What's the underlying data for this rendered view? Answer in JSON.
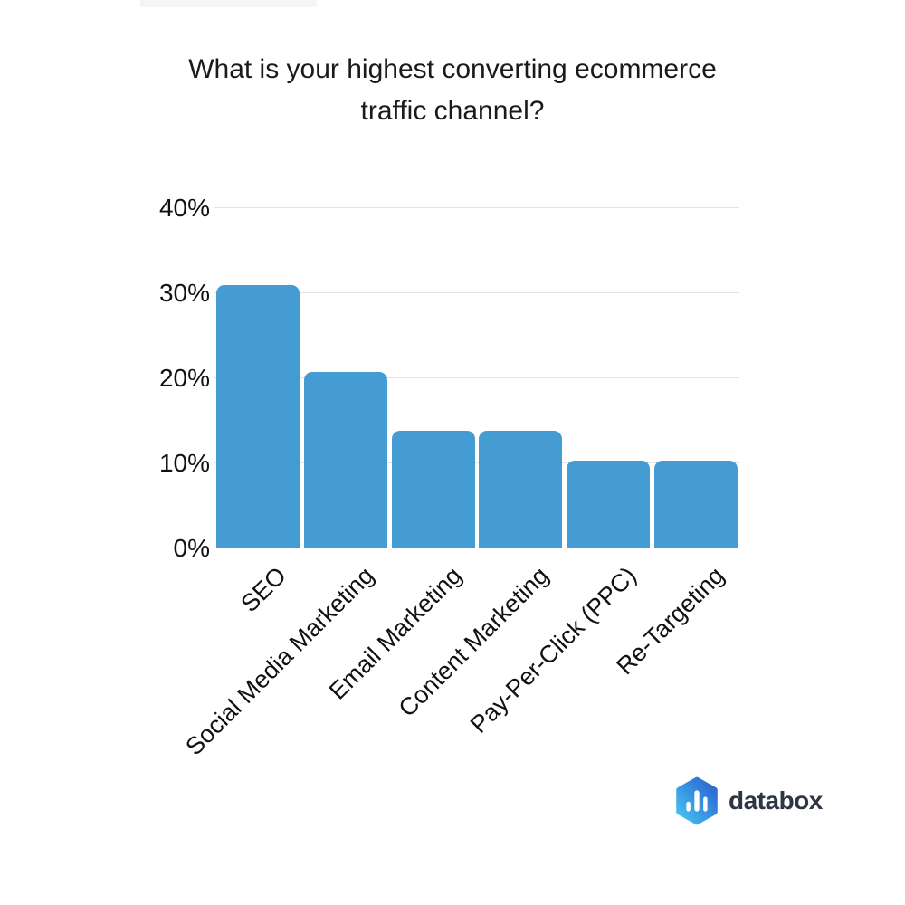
{
  "title": {
    "line1": "What is your highest converting ecommerce",
    "line2": "traffic channel?"
  },
  "chart_data": {
    "type": "bar",
    "title": "What is your highest converting ecommerce traffic channel?",
    "categories": [
      "SEO",
      "Social Media Marketing",
      "Email Marketing",
      "Content Marketing",
      "Pay-Per-Click (PPC)",
      "Re-Targeting"
    ],
    "values": [
      31,
      20.7,
      13.8,
      13.8,
      10.3,
      10.3
    ],
    "xlabel": "",
    "ylabel": "",
    "y_ticks": [
      "0%",
      "10%",
      "20%",
      "30%",
      "40%"
    ],
    "y_tick_values": [
      0,
      10,
      20,
      30,
      40
    ],
    "ylim": [
      0,
      40
    ],
    "grid": true,
    "legend": "none",
    "x_label_rotation_deg": -45,
    "bar_color": "#459cd3",
    "gridline_color": "#e3e3e3",
    "text_color": "#1a1a1a"
  },
  "logo": {
    "text": "databox",
    "icon": "databox-hexagon-bars-icon",
    "icon_gradient_start": "#45c6f2",
    "icon_gradient_end": "#2b5fd0",
    "text_color": "#2e3543"
  }
}
